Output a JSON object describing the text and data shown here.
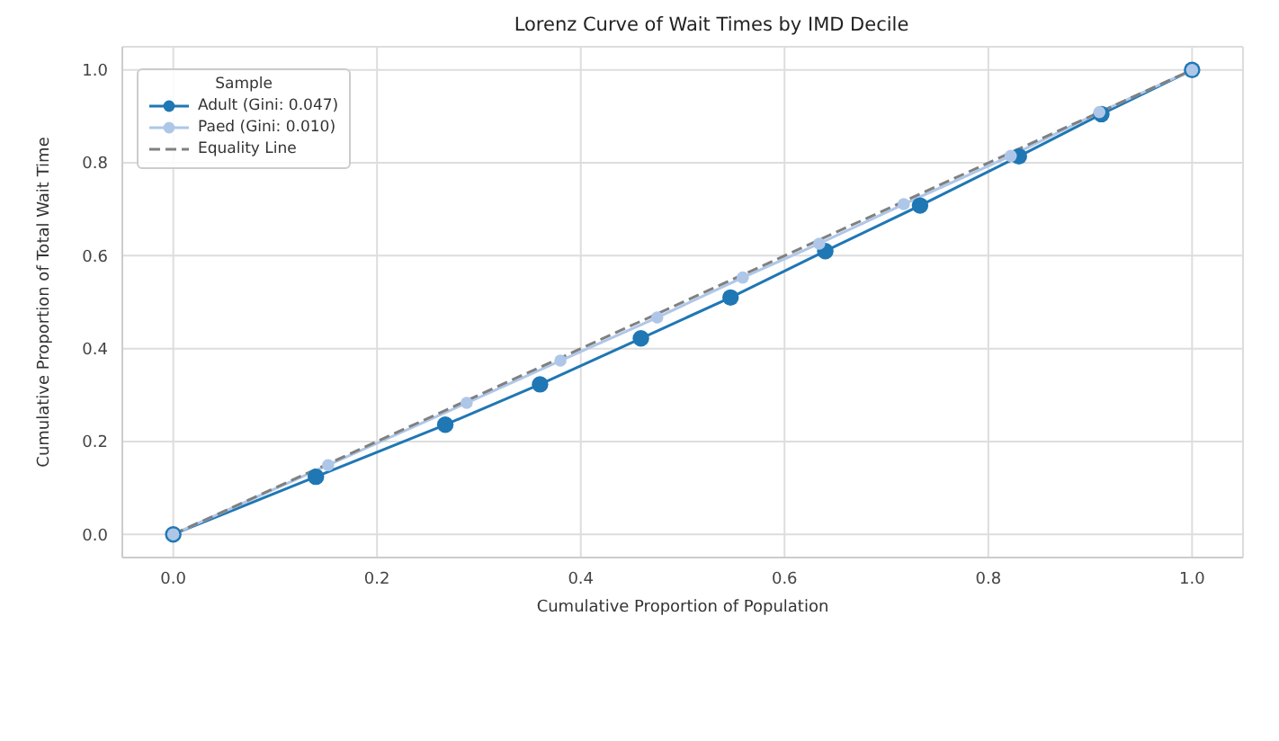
{
  "chart_data": {
    "type": "line",
    "title": "Lorenz Curve of Wait Times by IMD Decile",
    "xlabel": "Cumulative Proportion of Population",
    "ylabel": "Cumulative Proportion of Total Wait Time",
    "legend_title": "Sample",
    "legend": "top left",
    "grid": true,
    "marker": "circle",
    "line_style": "solid",
    "xlim": [
      -0.05,
      1.05
    ],
    "ylim": [
      -0.05,
      1.05
    ],
    "xticks": [
      {
        "value": 0,
        "label": "0.0"
      },
      0.2,
      0.4,
      0.6,
      0.8,
      {
        "value": 1,
        "label": "1.0"
      }
    ],
    "yticks": [
      {
        "value": 0,
        "label": "0.0"
      },
      0.2,
      0.4,
      0.6,
      0.8,
      {
        "value": 1,
        "label": "1.0"
      }
    ],
    "series": [
      {
        "name": "Adult (Gini: 0.047)",
        "color": "#1f77b4",
        "x": [
          0,
          0.14,
          0.267,
          0.36,
          0.459,
          0.547,
          0.64,
          0.733,
          0.83,
          0.911,
          1
        ],
        "values": [
          0,
          0.124,
          0.236,
          0.323,
          0.422,
          0.51,
          0.61,
          0.708,
          0.814,
          0.905,
          1
        ]
      },
      {
        "name": "Paed (Gini: 0.010)",
        "color": "#aec7e8",
        "x": [
          0,
          0.152,
          0.288,
          0.38,
          0.475,
          0.559,
          0.634,
          0.717,
          0.822,
          0.909,
          1
        ],
        "values": [
          0,
          0.149,
          0.283,
          0.374,
          0.467,
          0.553,
          0.626,
          0.711,
          0.815,
          0.909,
          1
        ]
      },
      {
        "name": "Equality Line",
        "color": "#808080",
        "marker": "none",
        "line_style": "dashed",
        "x": [
          0,
          1
        ],
        "values": [
          0,
          1
        ]
      }
    ]
  }
}
